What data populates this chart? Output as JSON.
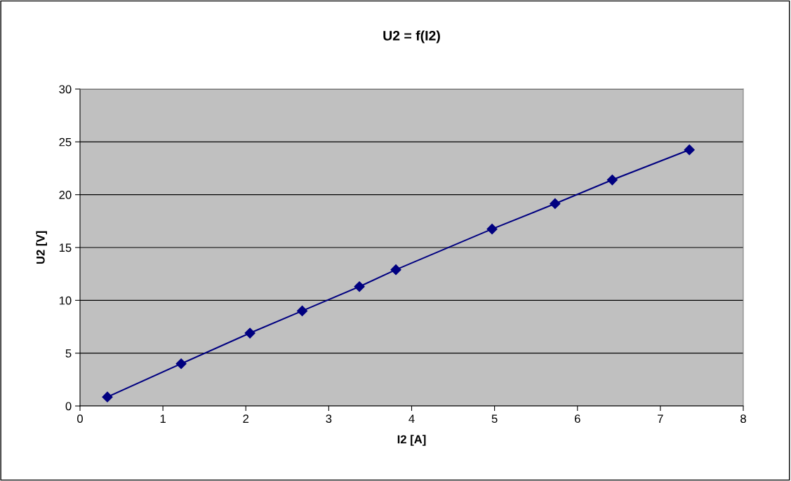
{
  "chart_data": {
    "type": "line",
    "title": "U2 = f(I2)",
    "xlabel": "I2 [A]",
    "ylabel": "U2 [V]",
    "series": [
      {
        "color": "#000080",
        "x": [
          0.33,
          1.22,
          2.05,
          2.68,
          3.37,
          3.81,
          4.97,
          5.73,
          6.42,
          7.35
        ],
        "values": [
          0.85,
          4.0,
          6.9,
          9.0,
          11.3,
          12.9,
          16.75,
          19.15,
          21.4,
          24.25
        ]
      }
    ],
    "xlim": [
      0,
      8
    ],
    "xticks": [
      0,
      1,
      2,
      3,
      4,
      5,
      6,
      7,
      8
    ],
    "ylim": [
      0,
      30
    ],
    "yticks": [
      0,
      5,
      10,
      15,
      20,
      25,
      30
    ],
    "grid": "y",
    "marker": "diamond",
    "line_style": "solid"
  }
}
